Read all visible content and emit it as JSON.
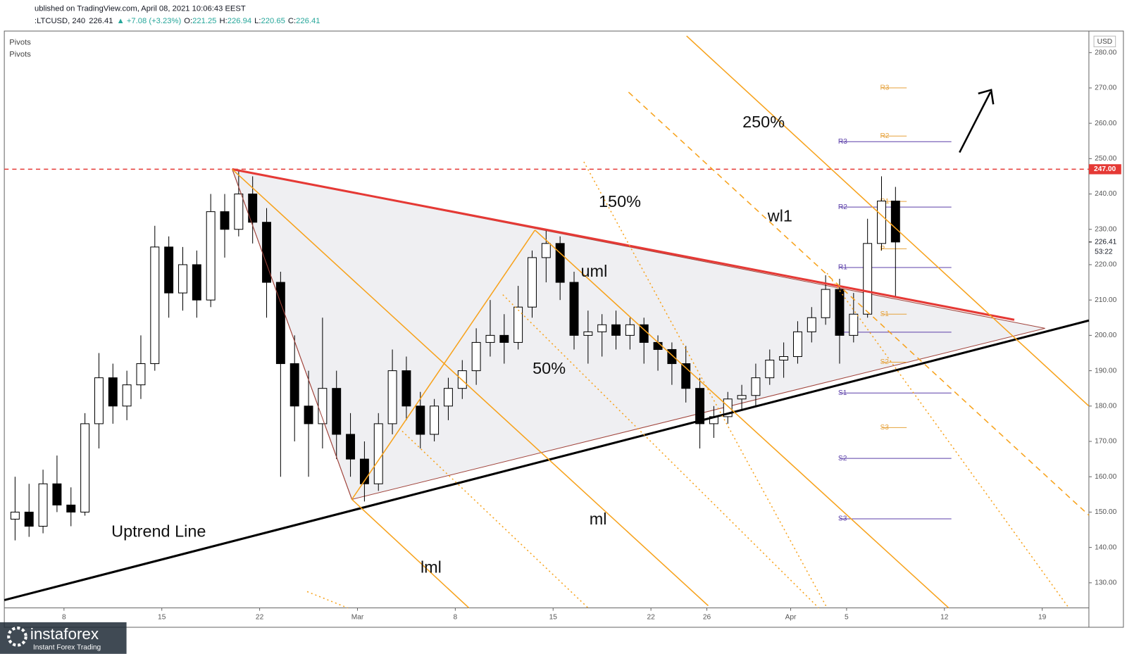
{
  "header": {
    "line1": "ublished on TradingView.com, April 08, 2021 10:06:43 EEST",
    "line2": [
      {
        "text": ":LTCUSD, 240",
        "color": "#131722"
      },
      {
        "text": "226.41",
        "color": "#131722"
      },
      {
        "text": "▲ +7.08 (+3.23%)",
        "color": "#26a69a"
      },
      {
        "text": "O:",
        "color": "#131722"
      },
      {
        "text": "221.25",
        "color": "#26a69a"
      },
      {
        "text": "H:",
        "color": "#131722"
      },
      {
        "text": "226.94",
        "color": "#26a69a"
      },
      {
        "text": "L:",
        "color": "#131722"
      },
      {
        "text": "220.65",
        "color": "#26a69a"
      },
      {
        "text": "C:",
        "color": "#131722"
      },
      {
        "text": "226.41",
        "color": "#26a69a"
      }
    ],
    "indicators": [
      "Pivots",
      "Pivots"
    ]
  },
  "chart_data": {
    "type": "candlestick",
    "currency": "USD",
    "xlim": [
      3.73,
      81.34
    ],
    "ylim": [
      122.9,
      286.1
    ],
    "xticks": [
      {
        "value": 8,
        "label": "8"
      },
      {
        "value": 15,
        "label": "15"
      },
      {
        "value": 22,
        "label": "22"
      },
      {
        "value": 29,
        "label": "Mar"
      },
      {
        "value": 36,
        "label": "8"
      },
      {
        "value": 43,
        "label": "15"
      },
      {
        "value": 50,
        "label": "22"
      },
      {
        "value": 54,
        "label": "26"
      },
      {
        "value": 60,
        "label": "Apr"
      },
      {
        "value": 64,
        "label": "5"
      },
      {
        "value": 71,
        "label": "12"
      },
      {
        "value": 78,
        "label": "19"
      }
    ],
    "yticks": [
      {
        "value": 130,
        "label": "130.00"
      },
      {
        "value": 140,
        "label": "140.00"
      },
      {
        "value": 150,
        "label": "150.00"
      },
      {
        "value": 160,
        "label": "160.00"
      },
      {
        "value": 170,
        "label": "170.00"
      },
      {
        "value": 180,
        "label": "180.00"
      },
      {
        "value": 190,
        "label": "190.00"
      },
      {
        "value": 200,
        "label": "200.00"
      },
      {
        "value": 210,
        "label": "210.00"
      },
      {
        "value": 220,
        "label": "220.00"
      },
      {
        "value": 230,
        "label": "230.00"
      },
      {
        "value": 240,
        "label": "240.00"
      },
      {
        "value": 250,
        "label": "250.00"
      },
      {
        "value": 260,
        "label": "260.00"
      },
      {
        "value": 270,
        "label": "270.00"
      },
      {
        "value": 280,
        "label": "280.00"
      }
    ],
    "candles": [
      {
        "x": 4,
        "o": 148,
        "h": 160,
        "l": 142,
        "c": 150
      },
      {
        "x": 5,
        "o": 150,
        "h": 158,
        "l": 143,
        "c": 146
      },
      {
        "x": 6,
        "o": 146,
        "h": 162,
        "l": 144,
        "c": 158
      },
      {
        "x": 7,
        "o": 158,
        "h": 166,
        "l": 150,
        "c": 152
      },
      {
        "x": 8,
        "o": 152,
        "h": 157,
        "l": 146,
        "c": 150
      },
      {
        "x": 9,
        "o": 150,
        "h": 178,
        "l": 149,
        "c": 175
      },
      {
        "x": 10,
        "o": 175,
        "h": 195,
        "l": 168,
        "c": 188
      },
      {
        "x": 11,
        "o": 188,
        "h": 192,
        "l": 175,
        "c": 180
      },
      {
        "x": 12,
        "o": 180,
        "h": 190,
        "l": 176,
        "c": 186
      },
      {
        "x": 13,
        "o": 186,
        "h": 200,
        "l": 182,
        "c": 192
      },
      {
        "x": 14,
        "o": 192,
        "h": 231,
        "l": 190,
        "c": 225
      },
      {
        "x": 15,
        "o": 225,
        "h": 228,
        "l": 205,
        "c": 212
      },
      {
        "x": 16,
        "o": 212,
        "h": 225,
        "l": 207,
        "c": 220
      },
      {
        "x": 17,
        "o": 220,
        "h": 224,
        "l": 205,
        "c": 210
      },
      {
        "x": 18,
        "o": 210,
        "h": 240,
        "l": 208,
        "c": 235
      },
      {
        "x": 19,
        "o": 235,
        "h": 240,
        "l": 222,
        "c": 230
      },
      {
        "x": 20,
        "o": 230,
        "h": 247,
        "l": 228,
        "c": 240
      },
      {
        "x": 21,
        "o": 240,
        "h": 245,
        "l": 226,
        "c": 232
      },
      {
        "x": 22,
        "o": 232,
        "h": 236,
        "l": 205,
        "c": 215
      },
      {
        "x": 23,
        "o": 215,
        "h": 218,
        "l": 160,
        "c": 192
      },
      {
        "x": 24,
        "o": 192,
        "h": 200,
        "l": 170,
        "c": 180
      },
      {
        "x": 25,
        "o": 180,
        "h": 190,
        "l": 160,
        "c": 175
      },
      {
        "x": 26,
        "o": 175,
        "h": 205,
        "l": 168,
        "c": 185
      },
      {
        "x": 27,
        "o": 185,
        "h": 190,
        "l": 165,
        "c": 172
      },
      {
        "x": 28,
        "o": 172,
        "h": 178,
        "l": 160,
        "c": 165
      },
      {
        "x": 29,
        "o": 165,
        "h": 170,
        "l": 153,
        "c": 158
      },
      {
        "x": 30,
        "o": 158,
        "h": 178,
        "l": 156,
        "c": 175
      },
      {
        "x": 31,
        "o": 175,
        "h": 196,
        "l": 172,
        "c": 190
      },
      {
        "x": 32,
        "o": 190,
        "h": 194,
        "l": 176,
        "c": 180
      },
      {
        "x": 33,
        "o": 180,
        "h": 184,
        "l": 168,
        "c": 172
      },
      {
        "x": 34,
        "o": 172,
        "h": 182,
        "l": 170,
        "c": 180
      },
      {
        "x": 35,
        "o": 180,
        "h": 188,
        "l": 176,
        "c": 185
      },
      {
        "x": 36,
        "o": 185,
        "h": 193,
        "l": 182,
        "c": 190
      },
      {
        "x": 37,
        "o": 190,
        "h": 202,
        "l": 186,
        "c": 198
      },
      {
        "x": 38,
        "o": 198,
        "h": 210,
        "l": 194,
        "c": 200
      },
      {
        "x": 39,
        "o": 200,
        "h": 206,
        "l": 192,
        "c": 198
      },
      {
        "x": 40,
        "o": 198,
        "h": 214,
        "l": 196,
        "c": 208
      },
      {
        "x": 41,
        "o": 208,
        "h": 224,
        "l": 205,
        "c": 222
      },
      {
        "x": 42,
        "o": 222,
        "h": 230,
        "l": 215,
        "c": 226
      },
      {
        "x": 43,
        "o": 226,
        "h": 228,
        "l": 210,
        "c": 215
      },
      {
        "x": 44,
        "o": 215,
        "h": 218,
        "l": 196,
        "c": 200
      },
      {
        "x": 45,
        "o": 200,
        "h": 207,
        "l": 192,
        "c": 201
      },
      {
        "x": 46,
        "o": 201,
        "h": 206,
        "l": 194,
        "c": 203
      },
      {
        "x": 47,
        "o": 203,
        "h": 207,
        "l": 196,
        "c": 200
      },
      {
        "x": 48,
        "o": 200,
        "h": 205,
        "l": 196,
        "c": 203
      },
      {
        "x": 49,
        "o": 203,
        "h": 205,
        "l": 192,
        "c": 198
      },
      {
        "x": 50,
        "o": 198,
        "h": 200,
        "l": 190,
        "c": 196
      },
      {
        "x": 51,
        "o": 196,
        "h": 198,
        "l": 186,
        "c": 192
      },
      {
        "x": 52,
        "o": 192,
        "h": 197,
        "l": 181,
        "c": 185
      },
      {
        "x": 53,
        "o": 185,
        "h": 188,
        "l": 168,
        "c": 175
      },
      {
        "x": 54,
        "o": 175,
        "h": 180,
        "l": 171,
        "c": 177
      },
      {
        "x": 55,
        "o": 177,
        "h": 184,
        "l": 175,
        "c": 182
      },
      {
        "x": 56,
        "o": 182,
        "h": 186,
        "l": 179,
        "c": 183
      },
      {
        "x": 57,
        "o": 183,
        "h": 192,
        "l": 180,
        "c": 188
      },
      {
        "x": 58,
        "o": 188,
        "h": 196,
        "l": 186,
        "c": 193
      },
      {
        "x": 59,
        "o": 193,
        "h": 198,
        "l": 188,
        "c": 194
      },
      {
        "x": 60,
        "o": 194,
        "h": 204,
        "l": 192,
        "c": 201
      },
      {
        "x": 61,
        "o": 201,
        "h": 208,
        "l": 198,
        "c": 205
      },
      {
        "x": 62,
        "o": 205,
        "h": 217,
        "l": 203,
        "c": 213
      },
      {
        "x": 63,
        "o": 213,
        "h": 216,
        "l": 192,
        "c": 200
      },
      {
        "x": 64,
        "o": 200,
        "h": 212,
        "l": 198,
        "c": 206
      },
      {
        "x": 65,
        "o": 206,
        "h": 233,
        "l": 205,
        "c": 226
      },
      {
        "x": 66,
        "o": 226,
        "h": 245,
        "l": 224,
        "c": 238
      },
      {
        "x": 67,
        "o": 238,
        "h": 242,
        "l": 211,
        "c": 226.41
      }
    ],
    "triangle": [
      [
        20.04,
        247
      ],
      [
        28.6,
        153.6
      ],
      [
        78.2,
        202
      ]
    ],
    "drawings": [
      {
        "p": [
          [
            3.73,
            247
          ],
          [
            81.34,
            247
          ]
        ],
        "color": "#e53935",
        "width": 1.5,
        "dash": "6,5"
      },
      {
        "p": [
          [
            3.73,
            125.1
          ],
          [
            81.34,
            204.2
          ]
        ],
        "color": "#000000",
        "width": 3,
        "dash": ""
      },
      {
        "p": [
          [
            20.04,
            247
          ],
          [
            76.0,
            204.4
          ]
        ],
        "color": "#e53935",
        "width": 3,
        "dash": ""
      },
      {
        "p": [
          [
            20.04,
            247
          ],
          [
            28.6,
            153.6
          ]
        ],
        "color": "#a0443c",
        "width": 1,
        "dash": ""
      },
      {
        "p": [
          [
            28.6,
            153.6
          ],
          [
            41.7,
            229.8
          ]
        ],
        "color": "#f7a21b",
        "width": 1.5,
        "dash": ""
      },
      {
        "p": [
          [
            20.04,
            247
          ],
          [
            54.1,
            123.5
          ]
        ],
        "color": "#f7a21b",
        "width": 1.5,
        "dash": ""
      },
      {
        "p": [
          [
            41.7,
            229.8
          ],
          [
            71.3,
            122.9
          ]
        ],
        "color": "#f7a21b",
        "width": 1.5,
        "dash": ""
      },
      {
        "p": [
          [
            28.6,
            153.6
          ],
          [
            36.97,
            122.9
          ]
        ],
        "color": "#f7a21b",
        "width": 1.5,
        "dash": ""
      },
      {
        "p": [
          [
            52.55,
            284.7
          ],
          [
            81.34,
            180
          ]
        ],
        "color": "#f7a21b",
        "width": 1.5,
        "dash": ""
      },
      {
        "p": [
          [
            48.4,
            268.8
          ],
          [
            81.34,
            149.1
          ]
        ],
        "color": "#f7a21b",
        "width": 1.5,
        "dash": "8,6"
      },
      {
        "p": [
          [
            45.2,
            249.1
          ],
          [
            62.6,
            122.9
          ]
        ],
        "color": "#f7a21b",
        "width": 1.5,
        "dash": "2,4"
      },
      {
        "p": [
          [
            32.2,
            172.9
          ],
          [
            45.5,
            122.9
          ]
        ],
        "color": "#f7a21b",
        "width": 1.5,
        "dash": "2,4"
      },
      {
        "p": [
          [
            39.4,
            211.5
          ],
          [
            62.0,
            122.9
          ]
        ],
        "color": "#f7a21b",
        "width": 1.5,
        "dash": "2,4"
      },
      {
        "p": [
          [
            62.6,
            217.6
          ],
          [
            79.9,
            122.9
          ]
        ],
        "color": "#f7a21b",
        "width": 1.5,
        "dash": "2,4"
      },
      {
        "p": [
          [
            25.4,
            127.5
          ],
          [
            28.3,
            122.9
          ]
        ],
        "color": "#f7a21b",
        "width": 1.5,
        "dash": "2,4"
      }
    ],
    "pivots": [
      {
        "color": "#e6a23c",
        "x": [
          66.5,
          68.3
        ],
        "levels": [
          {
            "label": "R3",
            "value": 270
          },
          {
            "label": "R2",
            "value": 256.4
          },
          {
            "label": "R1",
            "value": 237.9
          },
          {
            "label": "P",
            "value": 224.5
          },
          {
            "label": "S1",
            "value": 206
          },
          {
            "label": "S2",
            "value": 192.4
          },
          {
            "label": "S3",
            "value": 173.9
          }
        ]
      },
      {
        "color": "#5b3fa8",
        "x": [
          63.5,
          71.5
        ],
        "levels": [
          {
            "label": "R3",
            "value": 254.8
          },
          {
            "label": "R2",
            "value": 236.3
          },
          {
            "label": "R1",
            "value": 219.2
          },
          {
            "label": null,
            "value": 200.9
          },
          {
            "label": "S1",
            "value": 183.7
          },
          {
            "label": "S2",
            "value": 165.2
          },
          {
            "label": "S3",
            "value": 148.1
          }
        ]
      }
    ],
    "price_tags": [
      {
        "value": 247,
        "label": "247.00"
      },
      {
        "value": 226.41,
        "label": "226.41",
        "sub": "53:22"
      }
    ]
  },
  "annotations": [
    "250%",
    "150%",
    "wl1",
    "uml",
    "50%",
    "ml",
    "lml",
    "Uptrend Line"
  ],
  "logo": {
    "brand": "instaforex",
    "tagline": "Instant Forex Trading"
  }
}
